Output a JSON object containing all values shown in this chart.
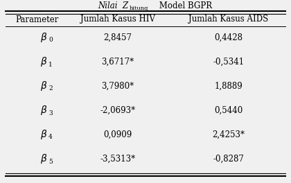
{
  "title": "Nilai  Z",
  "title_sub": "hitung",
  "title_after": " Model BGPR",
  "col_headers": [
    "Parameter",
    "Jumlah Kasus HIV",
    "Jumlah Kasus AIDS"
  ],
  "subscripts": [
    "0",
    "1",
    "2",
    "3",
    "4",
    "5"
  ],
  "hiv_values": [
    "2,8457",
    "3,6717*",
    "3,7980*",
    "-2,0693*",
    "0,0909",
    "-3,5313*"
  ],
  "aids_values": [
    "0,4428",
    "-0,5341",
    "1,8889",
    "0,5440",
    "2,4253*",
    "-0,8287"
  ],
  "bg_color": "#f0f0f0",
  "text_color": "#000000",
  "fontsize": 8.5
}
